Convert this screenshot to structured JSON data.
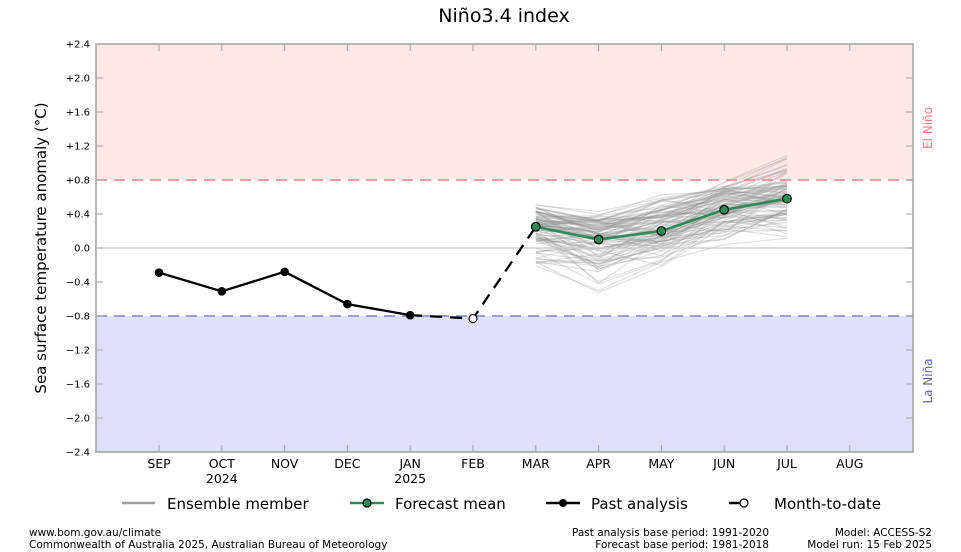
{
  "chart_data": {
    "type": "line",
    "title": "Niño3.4 index",
    "ylabel": "Sea surface temperature anomaly (°C)",
    "ylim": [
      -2.4,
      2.4
    ],
    "yticks": [
      -2.4,
      -2.0,
      -1.6,
      -1.2,
      -0.8,
      -0.4,
      0.0,
      0.4,
      0.8,
      1.2,
      1.6,
      2.0,
      2.4
    ],
    "ytick_labels": [
      "−2.4",
      "−2.0",
      "−1.6",
      "−1.2",
      "−0.8",
      "−0.4",
      "0.0",
      "+0.4",
      "+0.8",
      "+1.2",
      "+1.6",
      "+2.0",
      "+2.4"
    ],
    "categories": [
      "SEP",
      "OCT",
      "NOV",
      "DEC",
      "JAN",
      "FEB",
      "MAR",
      "APR",
      "MAY",
      "JUN",
      "JUL",
      "AUG"
    ],
    "category_sublabels": [
      "",
      "2024",
      "",
      "",
      "2025",
      "",
      "",
      "",
      "",
      "",
      "",
      ""
    ],
    "thresholds": {
      "el_nino": {
        "value": 0.8,
        "label": "El Niño",
        "color": "#f08080",
        "fill": "#ffe8e8"
      },
      "la_nina": {
        "value": -0.8,
        "label": "La Niña",
        "color": "#8080c8",
        "fill": "#e0e0fc"
      }
    },
    "series": [
      {
        "name": "Past analysis",
        "color": "#000000",
        "points": [
          {
            "x": "SEP",
            "y": -0.29
          },
          {
            "x": "OCT",
            "y": -0.51
          },
          {
            "x": "NOV",
            "y": -0.28
          },
          {
            "x": "DEC",
            "y": -0.66
          },
          {
            "x": "JAN",
            "y": -0.79
          }
        ]
      },
      {
        "name": "Month-to-date",
        "color": "#000000",
        "points": [
          {
            "x": "FEB",
            "y": -0.83
          }
        ]
      },
      {
        "name": "Forecast mean",
        "color": "#2e8b57",
        "points": [
          {
            "x": "MAR",
            "y": 0.25
          },
          {
            "x": "APR",
            "y": 0.1
          },
          {
            "x": "MAY",
            "y": 0.2
          },
          {
            "x": "JUN",
            "y": 0.45
          },
          {
            "x": "JUL",
            "y": 0.58
          }
        ]
      },
      {
        "name": "Ensemble member",
        "color": "#a0a0a0",
        "spread": {
          "months": [
            "MAR",
            "APR",
            "MAY",
            "JUN",
            "JUL"
          ],
          "min": [
            -0.4,
            -0.7,
            -0.3,
            -0.1,
            0.0
          ],
          "max": [
            0.65,
            0.55,
            0.75,
            0.9,
            1.25
          ]
        }
      }
    ],
    "legend": {
      "position": "bottom",
      "entries": [
        "Ensemble member",
        "Forecast mean",
        "Past analysis",
        "Month-to-date"
      ]
    },
    "grid": false
  },
  "footer": {
    "left": [
      "www.bom.gov.au/climate",
      "Commonwealth of Australia 2025, Australian Bureau of Meteorology"
    ],
    "middle": [
      "Past analysis base period: 1991-2020",
      "Forecast base period: 1981-2018"
    ],
    "right": [
      "Model: ACCESS-S2",
      "Model run: 15 Feb 2025"
    ]
  }
}
